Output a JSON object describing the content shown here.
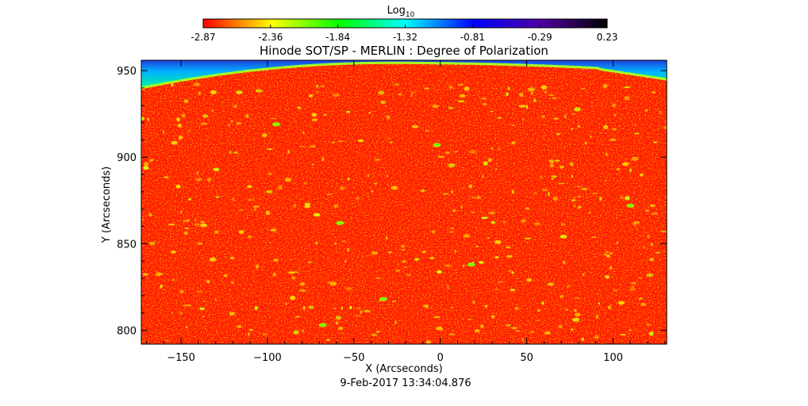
{
  "chart_data": {
    "type": "heatmap",
    "title": "Hinode SOT/SP - MERLIN : Degree of Polarization",
    "xlabel": "X (Arcseconds)",
    "ylabel": "Y (Arcseconds)",
    "timestamp": "9-Feb-2017 13:34:04.876",
    "xlim": [
      -173,
      131
    ],
    "ylim": [
      792,
      956
    ],
    "x_ticks": [
      -150,
      -100,
      -50,
      0,
      50,
      100
    ],
    "y_ticks": [
      800,
      850,
      900,
      950
    ],
    "colorbar": {
      "label": "Log",
      "label_subscript": "10",
      "range": [
        -2.87,
        0.23
      ],
      "tick_labels": [
        "-2.87",
        "-2.36",
        "-1.84",
        "-1.32",
        "-0.81",
        "-0.29",
        "0.23"
      ],
      "colors": [
        "#ff0000",
        "#ffff00",
        "#00ff00",
        "#00ffff",
        "#0000ff",
        "#5000a0",
        "#000000"
      ]
    },
    "limb": {
      "left_offset_y": 940,
      "apex_x": -30,
      "apex_y": 954.5,
      "step_x": 91,
      "right_offset_y": 945
    },
    "background_value": -2.87,
    "off_disk_value": -1.0
  }
}
